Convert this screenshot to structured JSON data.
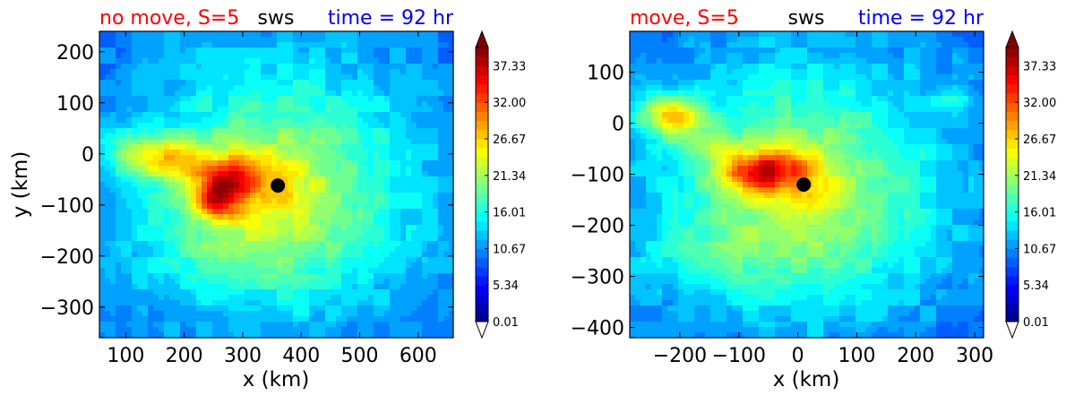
{
  "chart_data": [
    {
      "type": "heatmap",
      "variable": "sws",
      "title_left": "no move, S=5",
      "title_center": "sws",
      "title_right": "time = 92 hr",
      "title_colors": {
        "left": "#ff0000",
        "center": "#000000",
        "right": "#0000ff"
      },
      "xlabel": "x (km)",
      "ylabel": "y (km)",
      "xlim": [
        55,
        660
      ],
      "ylim": [
        -360,
        240
      ],
      "xticks": [
        100,
        200,
        300,
        400,
        500,
        600
      ],
      "yticks": [
        200,
        100,
        0,
        -100,
        -200,
        -300
      ],
      "xtick_labels": [
        "100",
        "200",
        "300",
        "400",
        "500",
        "600"
      ],
      "ytick_labels": [
        "200",
        "100",
        "0",
        "−100",
        "−200",
        "−300"
      ],
      "center_marker": {
        "x": 360,
        "y": -62
      },
      "features": [
        {
          "kind": "max",
          "x": 268,
          "y": -68,
          "sx": 35,
          "sy": 35,
          "amp": 16
        },
        {
          "kind": "max",
          "x": 245,
          "y": -98,
          "sx": 22,
          "sy": 20,
          "amp": 8
        },
        {
          "kind": "max",
          "x": 140,
          "y": 0,
          "sx": 55,
          "sy": 30,
          "amp": 9
        },
        {
          "kind": "max",
          "x": 190,
          "y": -25,
          "sx": 45,
          "sy": 30,
          "amp": 5
        },
        {
          "kind": "max",
          "x": 300,
          "y": -30,
          "sx": 40,
          "sy": 25,
          "amp": 5
        },
        {
          "kind": "max",
          "x": 300,
          "y": -180,
          "sx": 120,
          "sy": 60,
          "amp": 3
        }
      ],
      "colorbar": {
        "ticks": [
          "37.33",
          "32.00",
          "26.67",
          "21.34",
          "16.01",
          "10.67",
          "5.34",
          "0.01"
        ],
        "vmin": 0.01,
        "vmax": 40.0,
        "extend": "both"
      }
    },
    {
      "type": "heatmap",
      "variable": "sws",
      "title_left": "move, S=5",
      "title_center": "sws",
      "title_right": "time = 92 hr",
      "title_colors": {
        "left": "#ff0000",
        "center": "#000000",
        "right": "#0000ff"
      },
      "xlabel": "x (km)",
      "ylabel": "",
      "xlim": [
        -285,
        315
      ],
      "ylim": [
        -420,
        180
      ],
      "xticks": [
        -200,
        -100,
        0,
        100,
        200,
        300
      ],
      "yticks": [
        100,
        0,
        -100,
        -200,
        -300,
        -400
      ],
      "xtick_labels": [
        "−200",
        "−100",
        "0",
        "100",
        "200",
        "300"
      ],
      "ytick_labels": [
        "100",
        "0",
        "−100",
        "−200",
        "−300",
        "−400"
      ],
      "center_marker": {
        "x": 10,
        "y": -120
      },
      "features": [
        {
          "kind": "max",
          "x": -215,
          "y": 15,
          "sx": 40,
          "sy": 28,
          "amp": 14
        },
        {
          "kind": "max",
          "x": -75,
          "y": -98,
          "sx": 45,
          "sy": 28,
          "amp": 14
        },
        {
          "kind": "max",
          "x": -150,
          "y": -40,
          "sx": 40,
          "sy": 20,
          "amp": 5
        },
        {
          "kind": "max",
          "x": -30,
          "y": -80,
          "sx": 40,
          "sy": 25,
          "amp": 5
        },
        {
          "kind": "max",
          "x": -100,
          "y": -250,
          "sx": 150,
          "sy": 60,
          "amp": 3
        },
        {
          "kind": "max",
          "x": 265,
          "y": 55,
          "sx": 25,
          "sy": 18,
          "amp": 4
        }
      ],
      "colorbar": {
        "ticks": [
          "37.33",
          "32.00",
          "26.67",
          "21.34",
          "16.01",
          "10.67",
          "5.34",
          "0.01"
        ],
        "vmin": 0.01,
        "vmax": 40.0,
        "extend": "both"
      }
    }
  ]
}
